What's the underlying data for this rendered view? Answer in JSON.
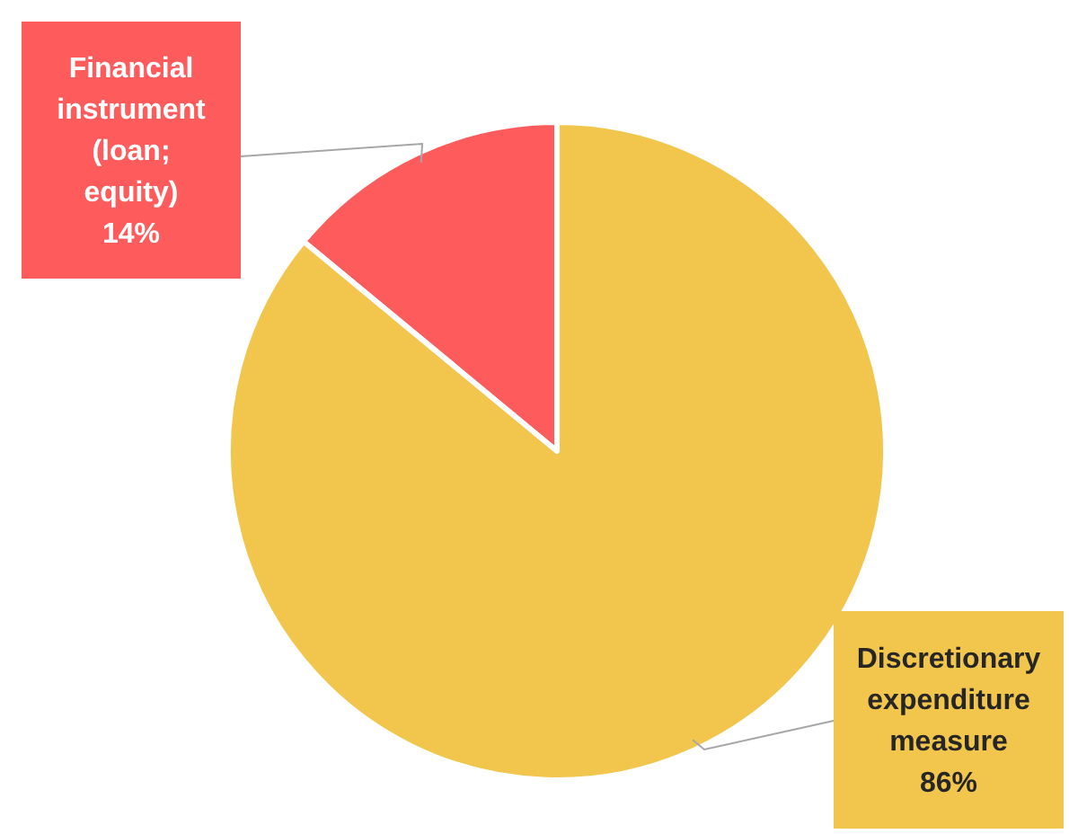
{
  "chart_data": {
    "type": "pie",
    "categories": [
      "Financial instrument (loan; equity)",
      "Discretionary expenditure measure"
    ],
    "values": [
      14,
      86
    ],
    "colors": [
      "#fe5c5c",
      "#f2c54d"
    ],
    "value_labels": [
      "14%",
      "86%"
    ]
  }
}
